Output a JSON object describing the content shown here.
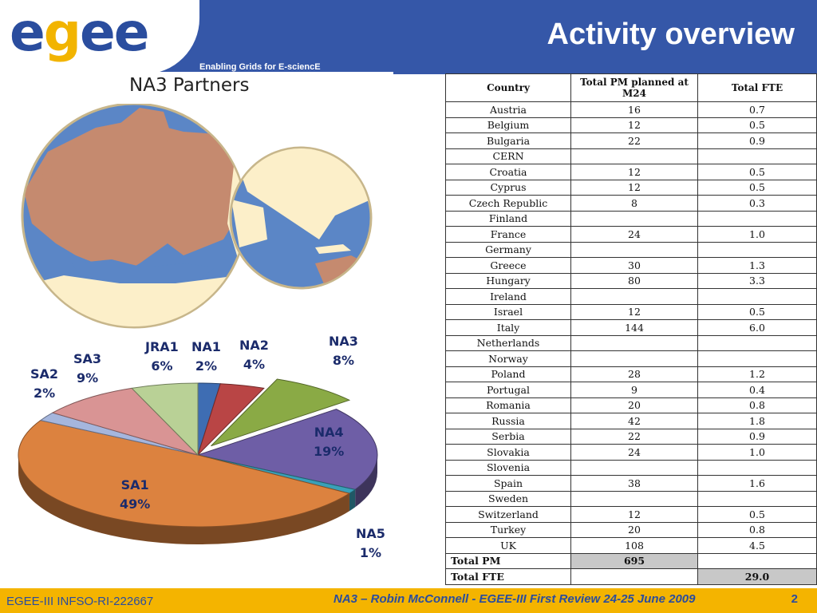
{
  "header": {
    "logo": "egee",
    "tagline": "Enabling Grids for E-sciencE",
    "title": "Activity overview"
  },
  "map": {
    "title": "NA3 Partners",
    "colors": {
      "partner": "#c58a6f",
      "other_land": "#fcefc9",
      "sea": "#5b86c6"
    }
  },
  "pie": {
    "slices": [
      {
        "name": "NA1",
        "value": 2,
        "label": "NA1",
        "pct": "2%",
        "color": "#3e6db3"
      },
      {
        "name": "NA2",
        "value": 4,
        "label": "NA2",
        "pct": "4%",
        "color": "#b94545"
      },
      {
        "name": "NA3",
        "value": 8,
        "label": "NA3",
        "pct": "8%",
        "color": "#8aaa45"
      },
      {
        "name": "NA4",
        "value": 19,
        "label": "NA4",
        "pct": "19%",
        "color": "#6e5ea6"
      },
      {
        "name": "NA5",
        "value": 1,
        "label": "NA5",
        "pct": "1%",
        "color": "#3aa0b8"
      },
      {
        "name": "SA1",
        "value": 49,
        "label": "SA1",
        "pct": "49%",
        "color": "#dc823f"
      },
      {
        "name": "SA2",
        "value": 2,
        "label": "SA2",
        "pct": "2%",
        "color": "#a5b6dd"
      },
      {
        "name": "SA3",
        "value": 9,
        "label": "SA3",
        "pct": "9%",
        "color": "#d99494"
      },
      {
        "name": "JRA1",
        "value": 6,
        "label": "JRA1",
        "pct": "6%",
        "color": "#b9d196"
      }
    ]
  },
  "table": {
    "headers": {
      "country": "Country",
      "pm": "Total PM planned at M24",
      "fte": "Total FTE"
    },
    "rows": [
      {
        "country": "Austria",
        "pm": "16",
        "fte": "0.7"
      },
      {
        "country": "Belgium",
        "pm": "12",
        "fte": "0.5"
      },
      {
        "country": "Bulgaria",
        "pm": "22",
        "fte": "0.9"
      },
      {
        "country": "CERN",
        "pm": "",
        "fte": ""
      },
      {
        "country": "Croatia",
        "pm": "12",
        "fte": "0.5"
      },
      {
        "country": "Cyprus",
        "pm": "12",
        "fte": "0.5"
      },
      {
        "country": "Czech Republic",
        "pm": "8",
        "fte": "0.3"
      },
      {
        "country": "Finland",
        "pm": "",
        "fte": ""
      },
      {
        "country": "France",
        "pm": "24",
        "fte": "1.0"
      },
      {
        "country": "Germany",
        "pm": "",
        "fte": ""
      },
      {
        "country": "Greece",
        "pm": "30",
        "fte": "1.3"
      },
      {
        "country": "Hungary",
        "pm": "80",
        "fte": "3.3"
      },
      {
        "country": "Ireland",
        "pm": "",
        "fte": ""
      },
      {
        "country": "Israel",
        "pm": "12",
        "fte": "0.5"
      },
      {
        "country": "Italy",
        "pm": "144",
        "fte": "6.0"
      },
      {
        "country": "Netherlands",
        "pm": "",
        "fte": ""
      },
      {
        "country": "Norway",
        "pm": "",
        "fte": ""
      },
      {
        "country": "Poland",
        "pm": "28",
        "fte": "1.2"
      },
      {
        "country": "Portugal",
        "pm": "9",
        "fte": "0.4"
      },
      {
        "country": "Romania",
        "pm": "20",
        "fte": "0.8"
      },
      {
        "country": "Russia",
        "pm": "42",
        "fte": "1.8"
      },
      {
        "country": "Serbia",
        "pm": "22",
        "fte": "0.9"
      },
      {
        "country": "Slovakia",
        "pm": "24",
        "fte": "1.0"
      },
      {
        "country": "Slovenia",
        "pm": "",
        "fte": ""
      },
      {
        "country": "Spain",
        "pm": "38",
        "fte": "1.6"
      },
      {
        "country": "Sweden",
        "pm": "",
        "fte": ""
      },
      {
        "country": "Switzerland",
        "pm": "12",
        "fte": "0.5"
      },
      {
        "country": "Turkey",
        "pm": "20",
        "fte": "0.8"
      },
      {
        "country": "UK",
        "pm": "108",
        "fte": "4.5"
      }
    ],
    "total_pm": {
      "label": "Total PM",
      "value": "695"
    },
    "total_fte": {
      "label": "Total FTE",
      "value": "29.0"
    }
  },
  "footer": {
    "left": "EGEE-III INFSO-RI-222667",
    "center": "NA3 – Robin McConnell - EGEE-III First Review 24-25 June 2009",
    "page": "2"
  }
}
